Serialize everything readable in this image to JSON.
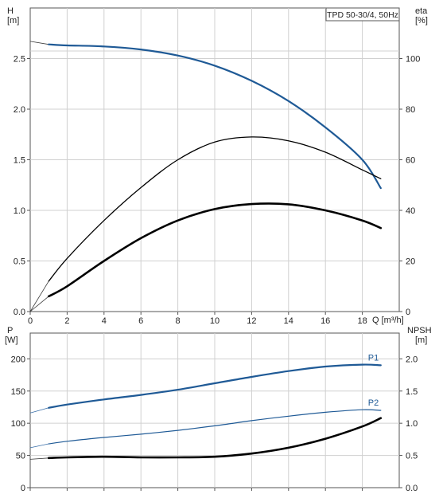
{
  "chart_data": [
    {
      "type": "line",
      "title": "TPD 50-30/4, 50Hz",
      "xlabel": "Q [m³/h]",
      "xlim": [
        0,
        20
      ],
      "x_ticks": [
        0,
        2,
        4,
        6,
        8,
        10,
        12,
        14,
        16,
        18
      ],
      "ylabel_left": [
        "H",
        "[m]"
      ],
      "ylim_left": [
        0,
        3.0
      ],
      "y_ticks_left": [
        0.0,
        0.5,
        1.0,
        1.5,
        2.0,
        2.5
      ],
      "ylabel_right": [
        "eta",
        "[%]"
      ],
      "ylim_right": [
        0,
        120
      ],
      "y_ticks_right": [
        0,
        20,
        40,
        60,
        80,
        100
      ],
      "grid": true,
      "series": [
        {
          "name": "",
          "axis": "left",
          "color": "#3a3a3a",
          "width": 0.8,
          "x": [
            0,
            1
          ],
          "y": [
            2.67,
            2.64
          ]
        },
        {
          "name": "",
          "axis": "left",
          "color": "#1f5a96",
          "width": 2.2,
          "x": [
            1,
            2,
            4,
            6,
            8,
            10,
            12,
            14,
            16,
            18,
            19
          ],
          "y": [
            2.64,
            2.63,
            2.62,
            2.59,
            2.53,
            2.43,
            2.28,
            2.08,
            1.82,
            1.5,
            1.22
          ]
        },
        {
          "name": "",
          "axis": "right",
          "color": "#3a3a3a",
          "width": 0.8,
          "x": [
            0,
            1
          ],
          "y": [
            0,
            12
          ]
        },
        {
          "name": "",
          "axis": "right",
          "color": "#000000",
          "width": 1.3,
          "x": [
            1,
            2,
            4,
            6,
            8,
            10,
            12,
            14,
            16,
            18,
            19
          ],
          "y": [
            12,
            21,
            36,
            49,
            60,
            67,
            69,
            67.5,
            63,
            56,
            52.5
          ]
        },
        {
          "name": "",
          "axis": "right",
          "color": "#3a3a3a",
          "width": 0.8,
          "x": [
            0,
            1
          ],
          "y": [
            0,
            6
          ]
        },
        {
          "name": "",
          "axis": "right",
          "color": "#000000",
          "width": 2.6,
          "x": [
            1,
            2,
            4,
            6,
            8,
            10,
            12,
            14,
            16,
            18,
            19
          ],
          "y": [
            6,
            10,
            20,
            29,
            36,
            40.5,
            42.5,
            42.4,
            40,
            36,
            33
          ]
        }
      ]
    },
    {
      "type": "line",
      "xlim": [
        0,
        20
      ],
      "x_ticks": [
        0,
        2,
        4,
        6,
        8,
        10,
        12,
        14,
        16,
        18
      ],
      "ylabel_left": [
        "P",
        "[W]"
      ],
      "ylim_left": [
        0,
        240
      ],
      "y_ticks_left": [
        0,
        50,
        100,
        150,
        200
      ],
      "ylabel_right": [
        "NPSH",
        "[m]"
      ],
      "ylim_right": [
        0,
        2.4
      ],
      "y_ticks_right": [
        "0.0",
        "0.5",
        "1.0",
        "1.5",
        "2.0"
      ],
      "grid": true,
      "series": [
        {
          "name": "",
          "axis": "left",
          "color": "#3a6fa8",
          "width": 0.8,
          "x": [
            0,
            1
          ],
          "y": [
            116,
            124
          ]
        },
        {
          "name": "P1",
          "axis": "left",
          "color": "#1f5a96",
          "width": 2.2,
          "x": [
            1,
            2,
            4,
            6,
            8,
            10,
            12,
            14,
            16,
            18,
            19
          ],
          "y": [
            124,
            129,
            137,
            144,
            152,
            162,
            172,
            181,
            188,
            191,
            190
          ]
        },
        {
          "name": "",
          "axis": "left",
          "color": "#3a6fa8",
          "width": 0.8,
          "x": [
            0,
            1
          ],
          "y": [
            62,
            68
          ]
        },
        {
          "name": "P2",
          "axis": "left",
          "color": "#1f5a96",
          "width": 1.2,
          "x": [
            1,
            2,
            4,
            6,
            8,
            10,
            12,
            14,
            16,
            18,
            19
          ],
          "y": [
            68,
            72,
            78,
            83,
            89,
            96,
            104,
            111,
            117,
            121,
            120
          ]
        },
        {
          "name": "",
          "axis": "right",
          "color": "#3a3a3a",
          "width": 0.8,
          "x": [
            0,
            1
          ],
          "y": [
            0.44,
            0.46
          ]
        },
        {
          "name": "",
          "axis": "right",
          "color": "#000000",
          "width": 2.6,
          "x": [
            1,
            2,
            4,
            6,
            8,
            10,
            12,
            14,
            16,
            18,
            19
          ],
          "y": [
            0.46,
            0.47,
            0.48,
            0.47,
            0.47,
            0.48,
            0.53,
            0.62,
            0.76,
            0.95,
            1.08
          ]
        }
      ],
      "labels": [
        {
          "text": "P1",
          "series": 1
        },
        {
          "text": "P2",
          "series": 3
        }
      ]
    }
  ]
}
